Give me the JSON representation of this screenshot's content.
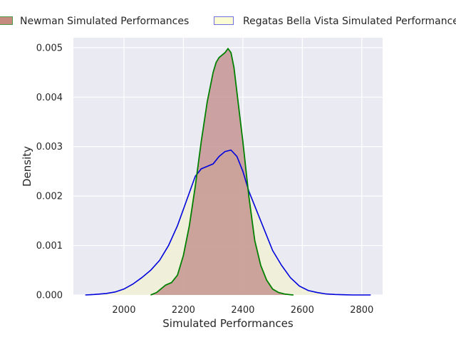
{
  "chart_data": {
    "type": "area",
    "title": "",
    "xlabel": "Simulated Performances",
    "ylabel": "Density",
    "xlim": [
      1830,
      2870
    ],
    "ylim": [
      0,
      0.0052
    ],
    "x_ticks": [
      "2000",
      "2200",
      "2400",
      "2600",
      "2800"
    ],
    "y_ticks": [
      "0.000",
      "0.001",
      "0.002",
      "0.003",
      "0.004",
      "0.005"
    ],
    "grid": true,
    "legend_position": "top",
    "legend": [
      {
        "label": "Newman Simulated Performances",
        "fill": "#c58b7e",
        "edge": "#4e9a4e"
      },
      {
        "label": "Regatas Bella Vista Simulated Performances",
        "fill": "#fbfbd4",
        "edge": "#7070e0"
      }
    ],
    "series": [
      {
        "name": "Newman Simulated Performances",
        "line_color": "#008000",
        "fill_color": "#c08a86",
        "x": [
          2090,
          2110,
          2120,
          2140,
          2160,
          2180,
          2200,
          2220,
          2240,
          2260,
          2280,
          2300,
          2310,
          2320,
          2330,
          2340,
          2350,
          2360,
          2370,
          2380,
          2390,
          2400,
          2420,
          2440,
          2460,
          2480,
          2500,
          2520,
          2540,
          2560,
          2570
        ],
        "y": [
          0.0,
          5e-05,
          0.0001,
          0.0002,
          0.00025,
          0.0004,
          0.0008,
          0.0014,
          0.0022,
          0.0031,
          0.0039,
          0.0045,
          0.0047,
          0.0048,
          0.00485,
          0.0049,
          0.00498,
          0.0049,
          0.0046,
          0.0041,
          0.0036,
          0.0031,
          0.002,
          0.0011,
          0.0006,
          0.0003,
          0.00012,
          5e-05,
          2e-05,
          5e-06,
          0.0
        ]
      },
      {
        "name": "Regatas Bella Vista Simulated Performances",
        "line_color": "#0000dd",
        "fill_color": "#f1f1d6",
        "x": [
          1870,
          1900,
          1940,
          1970,
          2000,
          2030,
          2060,
          2090,
          2120,
          2150,
          2180,
          2210,
          2240,
          2260,
          2280,
          2300,
          2320,
          2340,
          2360,
          2380,
          2400,
          2420,
          2440,
          2460,
          2480,
          2500,
          2530,
          2560,
          2590,
          2620,
          2650,
          2680,
          2710,
          2740,
          2770,
          2800,
          2830
        ],
        "y": [
          0.0,
          1e-05,
          3e-05,
          6e-05,
          0.00012,
          0.00022,
          0.00035,
          0.0005,
          0.0007,
          0.001,
          0.0014,
          0.0019,
          0.0024,
          0.00255,
          0.0026,
          0.00265,
          0.0028,
          0.0029,
          0.00293,
          0.0028,
          0.0025,
          0.0021,
          0.0018,
          0.0015,
          0.0012,
          0.0009,
          0.0006,
          0.00035,
          0.00018,
          9e-05,
          5e-05,
          2e-05,
          1e-05,
          5e-06,
          0.0,
          0.0,
          0.0
        ]
      }
    ]
  }
}
